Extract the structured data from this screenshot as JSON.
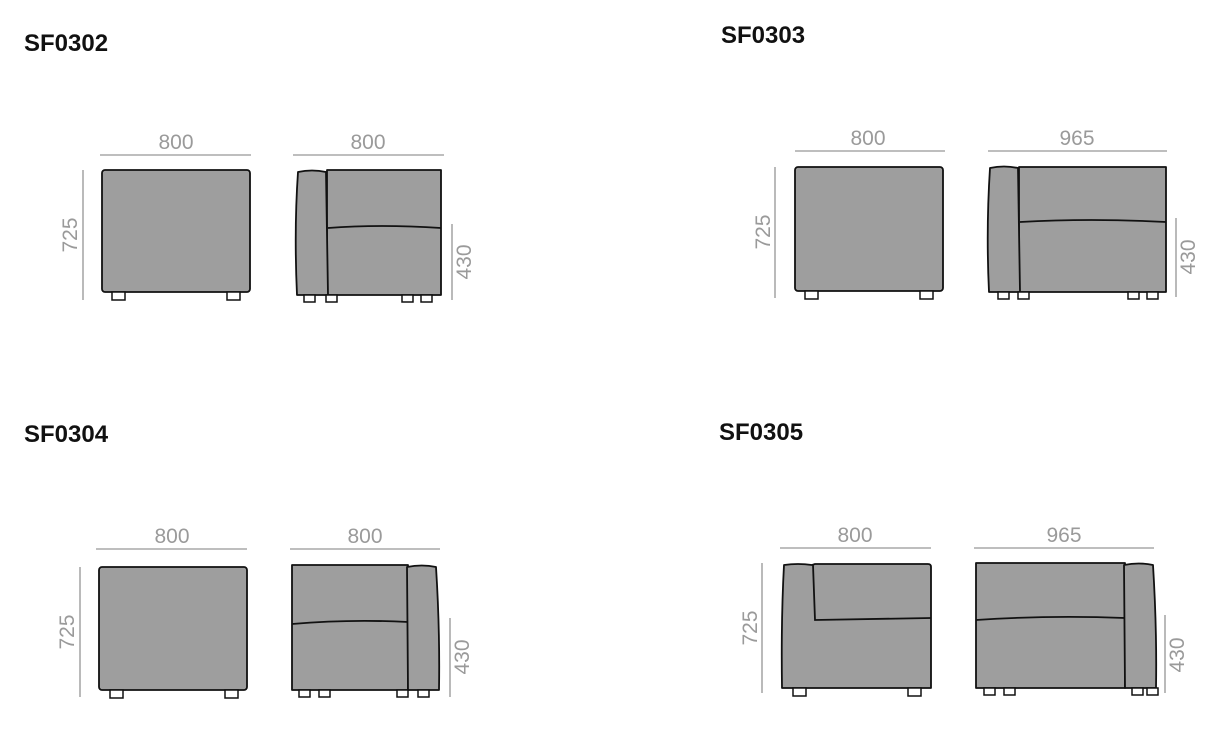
{
  "models": [
    {
      "code": "SF0302",
      "front_width": "800",
      "side_width": "800",
      "height": "725",
      "seat_height": "430"
    },
    {
      "code": "SF0303",
      "front_width": "800",
      "side_width": "965",
      "height": "725",
      "seat_height": "430"
    },
    {
      "code": "SF0304",
      "front_width": "800",
      "side_width": "800",
      "height": "725",
      "seat_height": "430"
    },
    {
      "code": "SF0305",
      "front_width": "800",
      "side_width": "965",
      "height": "725",
      "seat_height": "430"
    }
  ],
  "colors": {
    "upholstery": "#9e9e9e",
    "dimension": "#9a9a9a",
    "outline": "#111111"
  }
}
